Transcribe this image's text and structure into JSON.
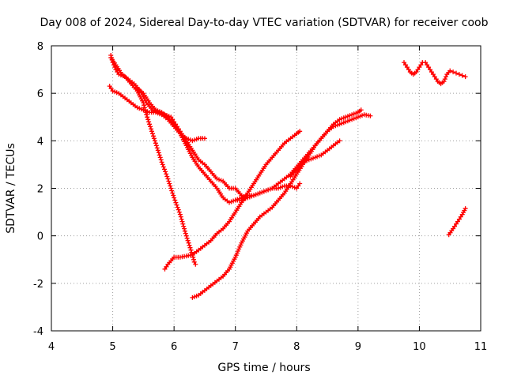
{
  "chart_data": {
    "type": "scatter",
    "title": "Day 008 of 2024, Sidereal Day-to-day VTEC variation (SDTVAR) for receiver coob",
    "xlabel": "GPS time / hours",
    "ylabel": "SDTVAR / TECUs",
    "xlim": [
      4,
      11
    ],
    "ylim": [
      -4,
      8
    ],
    "xticks": [
      "4",
      "5",
      "6",
      "7",
      "8",
      "9",
      "10",
      "11"
    ],
    "yticks": [
      "-4",
      "-2",
      "0",
      "2",
      "4",
      "6",
      "8"
    ],
    "grid": true,
    "marker": "+",
    "color": "#ff0000",
    "series": [
      {
        "x": [
          4.97,
          5.0,
          5.05,
          5.1,
          5.2,
          5.3,
          5.4,
          5.5,
          5.55,
          5.6,
          5.7,
          5.8,
          5.9,
          6.0,
          6.1,
          6.2,
          6.3,
          6.33,
          6.35
        ],
        "y": [
          7.6,
          7.3,
          7.0,
          6.8,
          6.7,
          6.4,
          6.1,
          5.6,
          5.1,
          4.7,
          3.9,
          3.1,
          2.4,
          1.6,
          0.9,
          0.0,
          -0.8,
          -1.1,
          -1.2
        ]
      },
      {
        "x": [
          4.97,
          5.05,
          5.15,
          5.25,
          5.35,
          5.45,
          5.55,
          5.65,
          5.75,
          5.85,
          5.95,
          6.0,
          6.05,
          6.1,
          6.15,
          6.2,
          6.3,
          6.4,
          6.5
        ],
        "y": [
          7.5,
          7.2,
          6.8,
          6.6,
          6.4,
          6.1,
          5.6,
          5.3,
          5.2,
          5.1,
          5.0,
          4.8,
          4.6,
          4.4,
          4.2,
          4.1,
          4.0,
          4.1,
          4.1
        ]
      },
      {
        "x": [
          4.95,
          5.0,
          5.1,
          5.2,
          5.3,
          5.4,
          5.5,
          5.6,
          5.7,
          5.8,
          5.9,
          6.0,
          6.1,
          6.2,
          6.3,
          6.4,
          6.5,
          6.6,
          6.7,
          6.8,
          6.9,
          7.0,
          7.1,
          7.15
        ],
        "y": [
          6.3,
          6.1,
          6.0,
          5.8,
          5.6,
          5.4,
          5.3,
          5.2,
          5.2,
          5.1,
          4.9,
          4.6,
          4.3,
          4.0,
          3.6,
          3.2,
          3.0,
          2.7,
          2.4,
          2.3,
          2.0,
          2.0,
          1.7,
          1.6
        ]
      },
      {
        "x": [
          5.4,
          5.5,
          5.6,
          5.7,
          5.8,
          5.9,
          6.0,
          6.1,
          6.2,
          6.3,
          6.4,
          6.5,
          6.6,
          6.7,
          6.8,
          6.9,
          7.0,
          7.1,
          7.2,
          7.3,
          7.4,
          7.5,
          7.6,
          7.7,
          7.8,
          7.9,
          8.0,
          8.05
        ],
        "y": [
          6.2,
          6.0,
          5.6,
          5.3,
          5.2,
          5.0,
          4.7,
          4.3,
          3.8,
          3.3,
          2.9,
          2.6,
          2.3,
          2.0,
          1.6,
          1.4,
          1.5,
          1.5,
          1.6,
          1.7,
          1.8,
          1.9,
          2.0,
          2.0,
          2.1,
          2.1,
          2.0,
          2.2
        ]
      },
      {
        "x": [
          5.85,
          5.9,
          6.0,
          6.1,
          6.2,
          6.3,
          6.4,
          6.5,
          6.6,
          6.7,
          6.8,
          6.9,
          7.0,
          7.1,
          7.2,
          7.3,
          7.4,
          7.5,
          7.6,
          7.7,
          7.8,
          7.9,
          8.0,
          8.05
        ],
        "y": [
          -1.4,
          -1.2,
          -0.9,
          -0.9,
          -0.85,
          -0.8,
          -0.6,
          -0.4,
          -0.2,
          0.1,
          0.3,
          0.6,
          1.0,
          1.4,
          1.8,
          2.2,
          2.6,
          3.0,
          3.3,
          3.6,
          3.9,
          4.1,
          4.3,
          4.4
        ]
      },
      {
        "x": [
          6.3,
          6.4,
          6.5,
          6.6,
          6.7,
          6.8,
          6.9,
          7.0,
          7.1,
          7.2,
          7.3,
          7.4,
          7.5,
          7.6,
          7.7,
          7.8,
          7.9,
          8.0,
          8.1,
          8.2,
          8.3,
          8.4,
          8.5,
          8.6,
          8.7,
          8.8,
          8.9,
          9.0,
          9.1,
          9.2
        ],
        "y": [
          -2.6,
          -2.5,
          -2.3,
          -2.1,
          -1.9,
          -1.7,
          -1.4,
          -0.9,
          -0.3,
          0.2,
          0.5,
          0.8,
          1.0,
          1.2,
          1.5,
          1.8,
          2.2,
          2.6,
          3.0,
          3.4,
          3.8,
          4.1,
          4.4,
          4.6,
          4.7,
          4.8,
          4.9,
          5.0,
          5.1,
          5.05
        ]
      },
      {
        "x": [
          7.0,
          7.1,
          7.2,
          7.3,
          7.4,
          7.5,
          7.6,
          7.7,
          7.8,
          7.9,
          8.0,
          8.1,
          8.2,
          8.3,
          8.4,
          8.5,
          8.6,
          8.7,
          8.8,
          8.9,
          9.0,
          9.05
        ],
        "y": [
          1.5,
          1.6,
          1.7,
          1.7,
          1.8,
          1.9,
          2.0,
          2.2,
          2.4,
          2.6,
          2.9,
          3.2,
          3.5,
          3.8,
          4.1,
          4.4,
          4.7,
          4.9,
          5.0,
          5.1,
          5.2,
          5.3
        ]
      },
      {
        "x": [
          7.9,
          8.0,
          8.1,
          8.2,
          8.3,
          8.4,
          8.5,
          8.6,
          8.7
        ],
        "y": [
          2.5,
          2.8,
          3.1,
          3.2,
          3.3,
          3.4,
          3.6,
          3.8,
          4.0
        ]
      },
      {
        "x": [
          9.75,
          9.8,
          9.85,
          9.9,
          9.95,
          10.0,
          10.05,
          10.1,
          10.15,
          10.2,
          10.25,
          10.3,
          10.35,
          10.4,
          10.45,
          10.5,
          10.55,
          10.6,
          10.65,
          10.7,
          10.75
        ],
        "y": [
          7.3,
          7.1,
          6.9,
          6.8,
          6.9,
          7.1,
          7.3,
          7.3,
          7.1,
          6.9,
          6.7,
          6.5,
          6.4,
          6.5,
          6.8,
          6.95,
          6.9,
          6.85,
          6.8,
          6.75,
          6.7
        ]
      },
      {
        "x": [
          10.48,
          10.55,
          10.6,
          10.65,
          10.7,
          10.75
        ],
        "y": [
          0.05,
          0.3,
          0.5,
          0.7,
          0.9,
          1.15
        ]
      }
    ]
  }
}
